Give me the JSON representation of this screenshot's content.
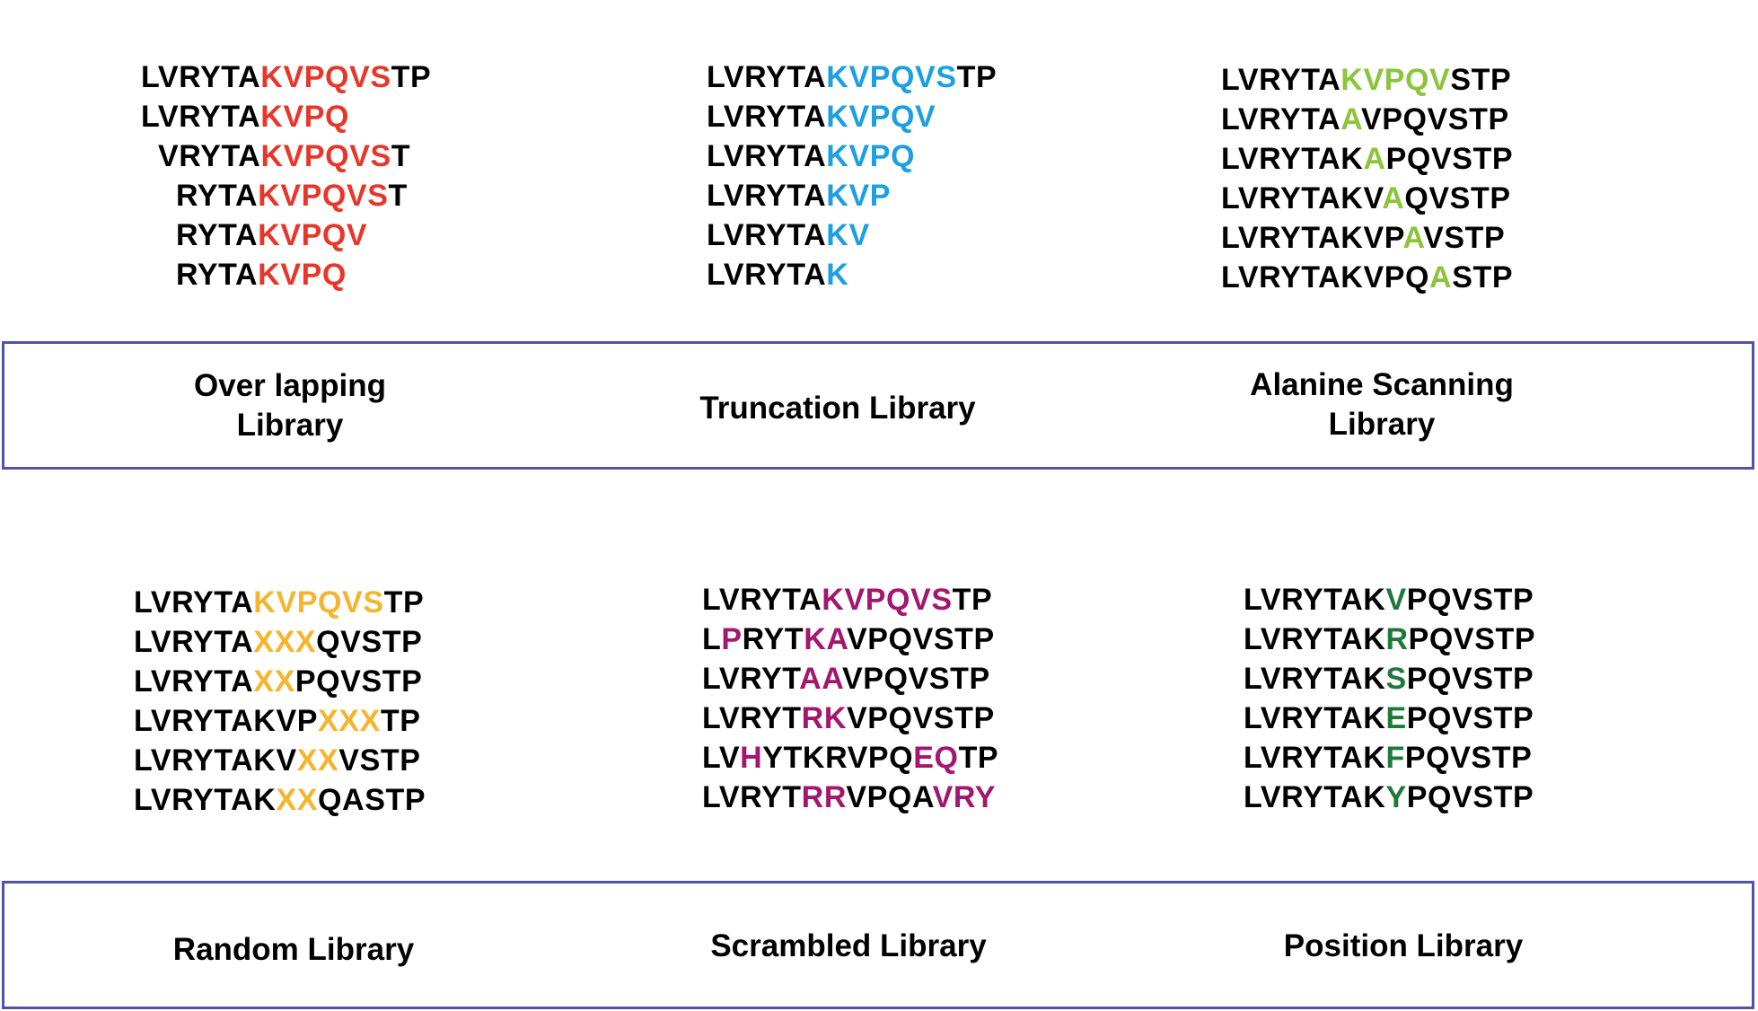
{
  "colors": {
    "overlapping": "#e8372a",
    "truncation": "#1d9fe2",
    "alanine": "#8cc43c",
    "random": "#f5b52e",
    "scrambled": "#a3176f",
    "position": "#1f7a3a",
    "black": "#000000",
    "band_border": "#4f54a8"
  },
  "panels": [
    {
      "id": "overlapping",
      "color_key": "overlapping",
      "label_lines": [
        "Over lapping",
        "Library"
      ],
      "sequences": [
        [
          [
            "LVRYTA",
            0
          ],
          [
            "KVPQVS",
            1
          ],
          [
            "TP",
            0
          ]
        ],
        [
          [
            "LVRYTA",
            0
          ],
          [
            "KVPQ",
            1
          ]
        ],
        [
          [
            "VRYTA",
            0
          ],
          [
            "KVPQVS",
            1
          ],
          [
            "T",
            0
          ]
        ],
        [
          [
            "RYTA",
            0
          ],
          [
            "KVPQVS",
            1
          ],
          [
            "T",
            0
          ]
        ],
        [
          [
            "RYTA",
            0
          ],
          [
            "KVPQV",
            1
          ]
        ],
        [
          [
            "RYTA",
            0
          ],
          [
            "KVPQ",
            1
          ]
        ]
      ]
    },
    {
      "id": "truncation",
      "color_key": "truncation",
      "label_lines": [
        "Truncation Library"
      ],
      "sequences": [
        [
          [
            "LVRYTA",
            0
          ],
          [
            "KVPQVS",
            1
          ],
          [
            "TP",
            0
          ]
        ],
        [
          [
            "LVRYTA",
            0
          ],
          [
            "KVPQV",
            1
          ]
        ],
        [
          [
            "LVRYTA",
            0
          ],
          [
            "KVPQ",
            1
          ]
        ],
        [
          [
            "LVRYTA",
            0
          ],
          [
            "KVP",
            1
          ]
        ],
        [
          [
            "LVRYTA",
            0
          ],
          [
            "KV",
            1
          ]
        ],
        [
          [
            "LVRYTA",
            0
          ],
          [
            "K",
            1
          ]
        ]
      ]
    },
    {
      "id": "alanine",
      "color_key": "alanine",
      "label_lines": [
        "Alanine Scanning",
        "Library"
      ],
      "sequences": [
        [
          [
            "LVRYTA",
            0
          ],
          [
            "KVPQV",
            1
          ],
          [
            "STP",
            0
          ]
        ],
        [
          [
            "LVRYTA",
            0
          ],
          [
            "A",
            1
          ],
          [
            "VPQVSTP",
            0
          ]
        ],
        [
          [
            "LVRYTAK",
            0
          ],
          [
            "A",
            1
          ],
          [
            "PQVSTP",
            0
          ]
        ],
        [
          [
            "LVRYTAKV",
            0
          ],
          [
            "A",
            1
          ],
          [
            "QVSTP",
            0
          ]
        ],
        [
          [
            "LVRYTAKVP",
            0
          ],
          [
            "A",
            1
          ],
          [
            "VSTP",
            0
          ]
        ],
        [
          [
            "LVRYTAKVPQ",
            0
          ],
          [
            "A",
            1
          ],
          [
            "STP",
            0
          ]
        ]
      ]
    },
    {
      "id": "random",
      "color_key": "random",
      "label_lines": [
        "Random Library"
      ],
      "sequences": [
        [
          [
            "LVRYTA",
            0
          ],
          [
            "KVPQVS",
            1
          ],
          [
            "TP",
            0
          ]
        ],
        [
          [
            "LVRYTA",
            0
          ],
          [
            "XXX",
            1
          ],
          [
            "QVSTP",
            0
          ]
        ],
        [
          [
            "LVRYTA",
            0
          ],
          [
            "XX",
            1
          ],
          [
            "PQVSTP",
            0
          ]
        ],
        [
          [
            "LVRYTAKVP",
            0
          ],
          [
            "XXX",
            1
          ],
          [
            "TP",
            0
          ]
        ],
        [
          [
            "LVRYTAKV",
            0
          ],
          [
            "XX",
            1
          ],
          [
            "VSTP",
            0
          ]
        ],
        [
          [
            "LVRYTAK",
            0
          ],
          [
            "XX",
            1
          ],
          [
            "QASTP",
            0
          ]
        ]
      ]
    },
    {
      "id": "scrambled",
      "color_key": "scrambled",
      "label_lines": [
        "Scrambled Library"
      ],
      "sequences": [
        [
          [
            "LVRYTA",
            0
          ],
          [
            "KVPQVS",
            1
          ],
          [
            "TP",
            0
          ]
        ],
        [
          [
            "L",
            0
          ],
          [
            "P",
            1
          ],
          [
            "RYT",
            0
          ],
          [
            "KA",
            1
          ],
          [
            "VPQVSTP",
            0
          ]
        ],
        [
          [
            "LVRYT",
            0
          ],
          [
            "AA",
            1
          ],
          [
            "VPQVSTP",
            0
          ]
        ],
        [
          [
            "LVRYT",
            0
          ],
          [
            "RK",
            1
          ],
          [
            "VPQVSTP",
            0
          ]
        ],
        [
          [
            "LV",
            0
          ],
          [
            "H",
            1
          ],
          [
            "YTKRVPQ",
            0
          ],
          [
            "EQ",
            1
          ],
          [
            "TP",
            0
          ]
        ],
        [
          [
            "LVRYT",
            0
          ],
          [
            "RR",
            1
          ],
          [
            "VPQA",
            0
          ],
          [
            "VRY",
            1
          ]
        ]
      ]
    },
    {
      "id": "position",
      "color_key": "position",
      "label_lines": [
        "Position Library"
      ],
      "sequences": [
        [
          [
            "LVRYTAK",
            0
          ],
          [
            "V",
            1
          ],
          [
            "PQVSTP",
            0
          ]
        ],
        [
          [
            "LVRYTAK",
            0
          ],
          [
            "R",
            1
          ],
          [
            "PQVSTP",
            0
          ]
        ],
        [
          [
            "LVRYTAK",
            0
          ],
          [
            "S",
            1
          ],
          [
            "PQVSTP",
            0
          ]
        ],
        [
          [
            "LVRYTAK",
            0
          ],
          [
            "E",
            1
          ],
          [
            "PQVSTP",
            0
          ]
        ],
        [
          [
            "LVRYTAK",
            0
          ],
          [
            "F",
            1
          ],
          [
            "PQVSTP",
            0
          ]
        ],
        [
          [
            "LVRYTAK",
            0
          ],
          [
            "Y",
            1
          ],
          [
            "PQVSTP",
            0
          ]
        ]
      ]
    }
  ]
}
